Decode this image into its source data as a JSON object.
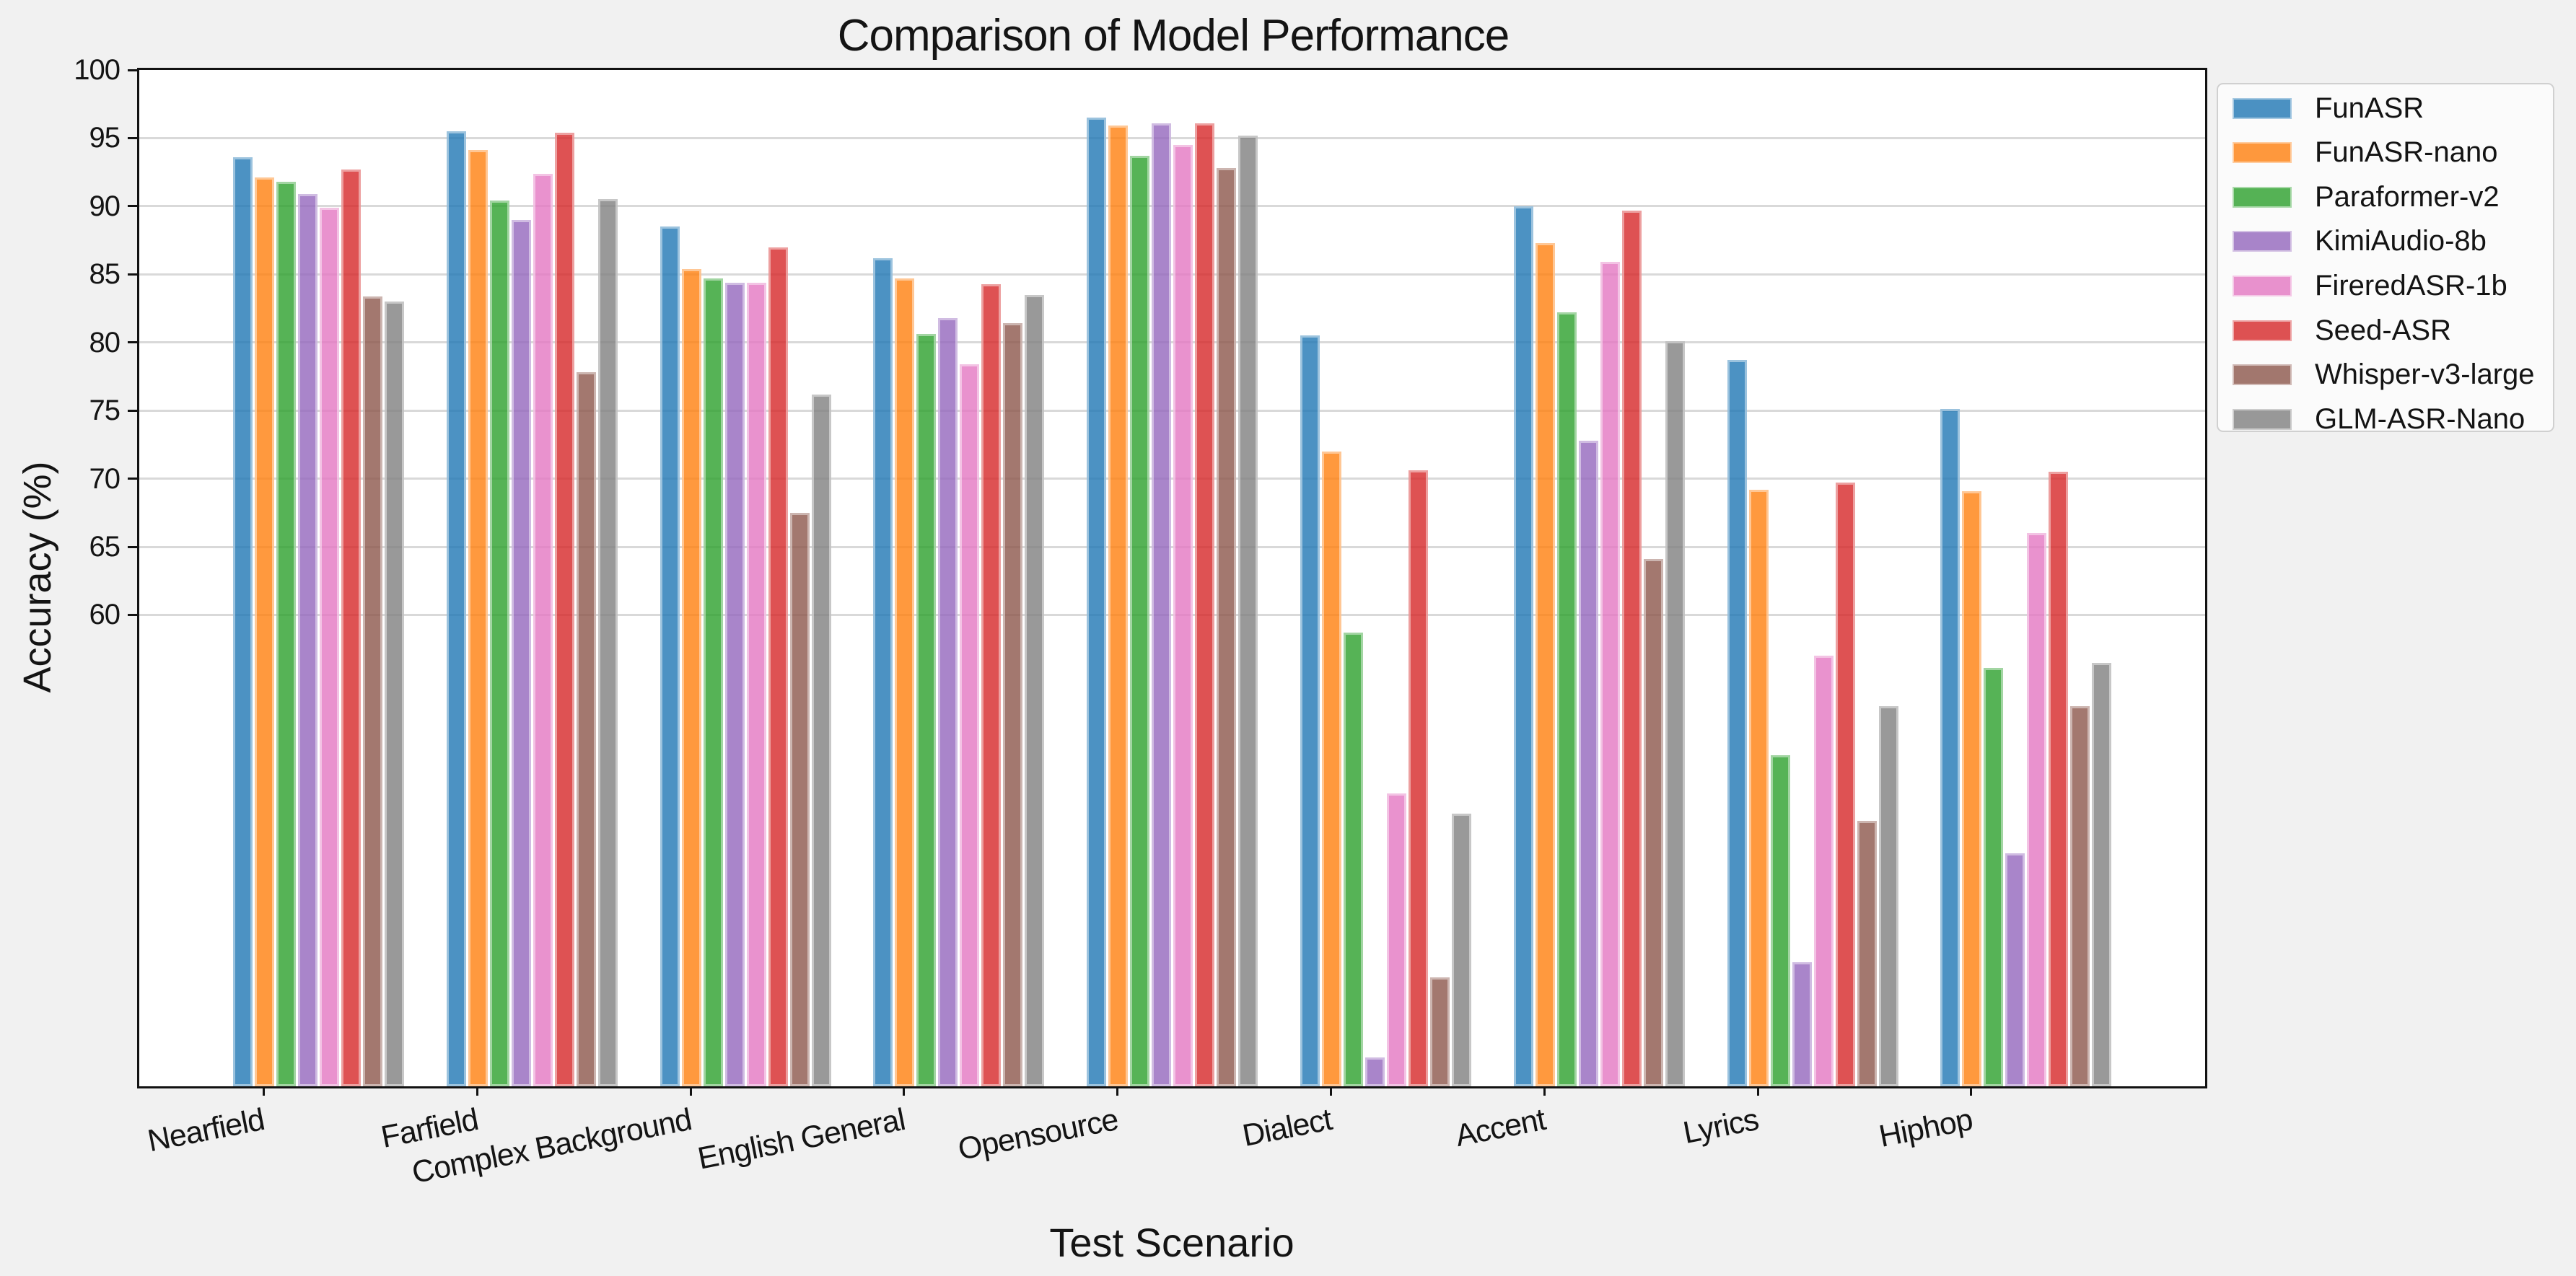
{
  "chart_data": {
    "type": "bar",
    "title": "Comparison of Model Performance",
    "xlabel": "Test Scenario",
    "ylabel": "Accuracy (%)",
    "categories": [
      "Nearfield",
      "Farfield",
      "Complex Background",
      "English General",
      "Opensource",
      "Dialect",
      "Accent",
      "Lyrics",
      "Hiphop"
    ],
    "series": [
      {
        "name": "FunASR",
        "color": "#1f77b4",
        "values": [
          93.6,
          95.5,
          88.5,
          86.2,
          96.5,
          80.5,
          90.0,
          78.7,
          75.1
        ]
      },
      {
        "name": "FunASR-nano",
        "color": "#ff7f0e",
        "values": [
          92.1,
          94.1,
          85.4,
          84.7,
          95.9,
          72.0,
          87.3,
          69.2,
          69.1
        ]
      },
      {
        "name": "Paraformer-v2",
        "color": "#2ca02c",
        "values": [
          91.8,
          90.4,
          84.7,
          80.6,
          93.7,
          58.7,
          82.2,
          49.7,
          56.1
        ]
      },
      {
        "name": "KimiAudio-8b",
        "color": "#9467bd",
        "values": [
          90.9,
          89.0,
          84.4,
          81.8,
          96.1,
          27.5,
          72.8,
          34.5,
          42.5
        ]
      },
      {
        "name": "FireredASR-1b",
        "color": "#e377c2",
        "values": [
          89.9,
          92.4,
          84.4,
          78.4,
          94.5,
          46.9,
          85.9,
          57.0,
          66.0
        ]
      },
      {
        "name": "Seed-ASR",
        "color": "#d62728",
        "values": [
          92.7,
          95.4,
          87.0,
          84.3,
          96.1,
          70.6,
          89.7,
          69.7,
          70.5
        ]
      },
      {
        "name": "Whisper-v3-large",
        "color": "#8c564b",
        "values": [
          83.4,
          77.8,
          67.5,
          81.4,
          92.8,
          33.4,
          64.1,
          44.9,
          53.3
        ]
      },
      {
        "name": "GLM-ASR-Nano",
        "color": "#7f7f7f",
        "values": [
          83.0,
          90.5,
          76.2,
          83.5,
          95.2,
          45.4,
          80.1,
          53.3,
          56.5
        ]
      }
    ],
    "bar_alpha": 0.8,
    "ylim": [
      25.4,
      100
    ],
    "yticks": [
      60,
      65,
      70,
      75,
      80,
      85,
      90,
      95,
      100
    ],
    "grid": "horizontal",
    "legend_position": "upper-right-outside"
  },
  "colors": {
    "figure_background": "#f1f1f1",
    "plot_background": "#ffffff",
    "gridline": "#d9d9d9",
    "spine": "#121212",
    "legend_background": "#fbfbfb",
    "legend_border": "#d0d0d0",
    "text": "#141414"
  }
}
